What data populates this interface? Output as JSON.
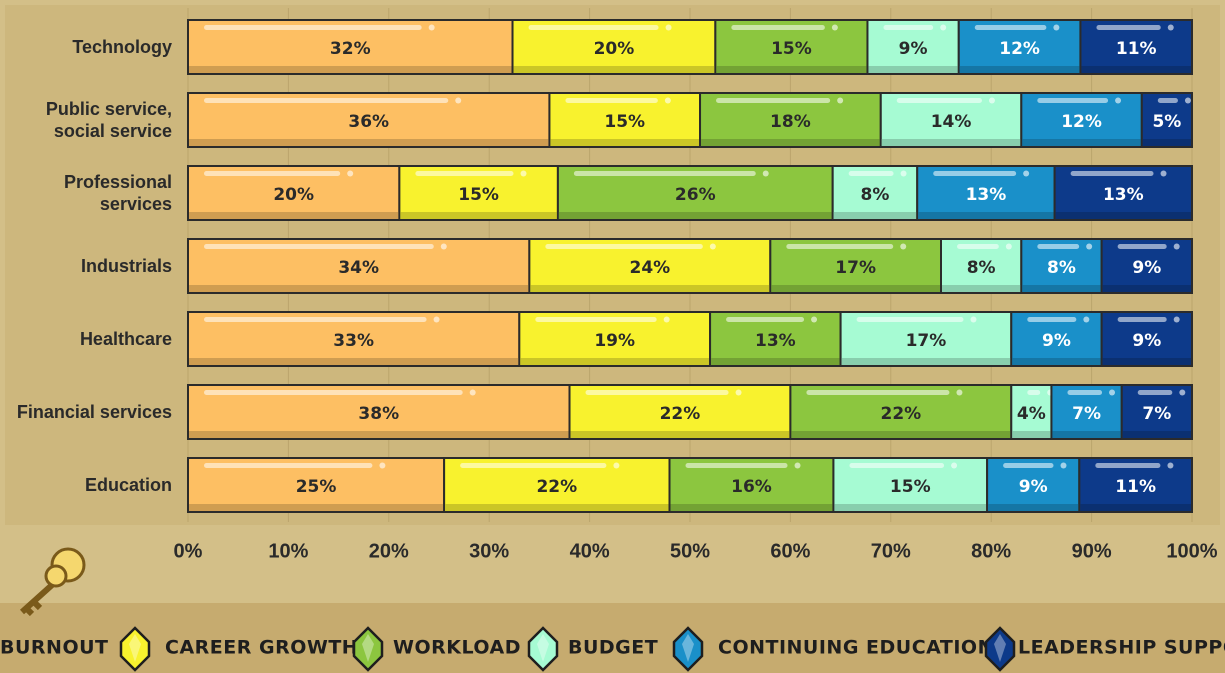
{
  "chart_data": {
    "type": "bar",
    "orientation": "horizontal",
    "stack": "percent",
    "categories": [
      "Technology",
      "Public service, social service",
      "Professional services",
      "Industrials",
      "Healthcare",
      "Financial services",
      "Education"
    ],
    "series": [
      {
        "name": "Burnout",
        "color": "#fdbf63",
        "values": [
          32,
          36,
          20,
          34,
          33,
          38,
          25
        ],
        "value_labels": [
          "32%",
          "36%",
          "20%",
          "34%",
          "33%",
          "38%",
          "25%"
        ]
      },
      {
        "name": "Career Growth",
        "color": "#f8f22e",
        "values": [
          20,
          15,
          15,
          24,
          19,
          22,
          22
        ],
        "value_labels": [
          "20%",
          "15%",
          "15%",
          "24%",
          "19%",
          "22%",
          "22%"
        ]
      },
      {
        "name": "Workload",
        "color": "#8cc63f",
        "values": [
          15,
          18,
          26,
          17,
          13,
          22,
          16
        ],
        "value_labels": [
          "15%",
          "18%",
          "26%",
          "17%",
          "13%",
          "22%",
          "16%"
        ]
      },
      {
        "name": "Budget",
        "color": "#a6fbd3",
        "values": [
          9,
          14,
          8,
          8,
          17,
          4,
          15
        ],
        "value_labels": [
          "9%",
          "14%",
          "8%",
          "8%",
          "17%",
          "4%",
          "15%"
        ]
      },
      {
        "name": "Continuing Education",
        "color": "#1a90c9",
        "values": [
          12,
          12,
          13,
          8,
          9,
          7,
          9
        ],
        "value_labels": [
          "12%",
          "12%",
          "13%",
          "8%",
          "9%",
          "7%",
          "9%"
        ]
      },
      {
        "name": "Leadership Support",
        "color": "#0d3a8a",
        "values": [
          11,
          5,
          13,
          9,
          9,
          7,
          11
        ],
        "value_labels": [
          "11%",
          "5%",
          "13%",
          "9%",
          "9%",
          "7%",
          "11%"
        ]
      }
    ],
    "xlim": [
      0,
      100
    ],
    "xticks": [
      {
        "value": 0,
        "label": "0%"
      },
      {
        "value": 10,
        "label": "10%"
      },
      {
        "value": 20,
        "label": "20%"
      },
      {
        "value": 30,
        "label": "30%"
      },
      {
        "value": 40,
        "label": "40%"
      },
      {
        "value": 50,
        "label": "50%"
      },
      {
        "value": 60,
        "label": "60%"
      },
      {
        "value": 70,
        "label": "70%"
      },
      {
        "value": 80,
        "label": "80%"
      },
      {
        "value": 90,
        "label": "90%"
      },
      {
        "value": 100,
        "label": "100%"
      }
    ],
    "grid": true,
    "legend": "bottom"
  }
}
